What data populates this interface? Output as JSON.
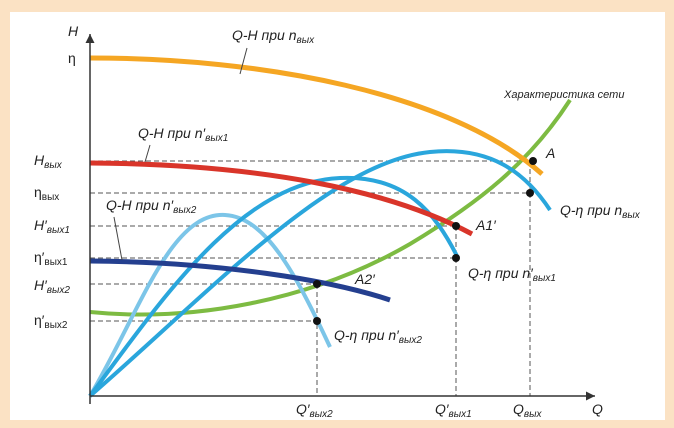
{
  "colors": {
    "background": "#fbe2c4",
    "qh_nom": "#f5a623",
    "qh_1": "#d9352a",
    "qh_2": "#243f8f",
    "eff_nom": "#2aa6dc",
    "eff_1": "#2aa6dc",
    "eff_2": "#7cc5e8",
    "network": "#7dbb42"
  },
  "axes": {
    "y": "H",
    "x": "Q"
  },
  "network_label": "Характеристика сети",
  "y_ticks": {
    "eta": "η",
    "h_vyh": {
      "main": "H",
      "sub": "вых"
    },
    "eta_vyh": {
      "main": "η",
      "sub": "вых"
    },
    "h_vyh1": {
      "main": "H′",
      "sub": "вых1"
    },
    "eta_vyh1": {
      "main": "η′",
      "sub": "вых1"
    },
    "h_vyh2": {
      "main": "H′",
      "sub": "вых2"
    },
    "eta_vyh2": {
      "main": "η′",
      "sub": "вых2"
    }
  },
  "x_ticks": {
    "q2": {
      "main": "Q′",
      "sub": "вых2"
    },
    "q1": {
      "main": "Q′",
      "sub": "вых1"
    },
    "q": {
      "main": "Q",
      "sub": "вых"
    }
  },
  "curve_labels": {
    "qh_nom": {
      "main": "Q-H при n",
      "sub": "вых"
    },
    "qh_1": {
      "main": "Q-H при n′",
      "sub": "вых1"
    },
    "qh_2": {
      "main": "Q-H при n′",
      "sub": "вых2"
    },
    "eff_nom": {
      "main": "Q-η при n",
      "sub": "вых"
    },
    "eff_1": {
      "main": "Q-η при n′",
      "sub": "вых1"
    },
    "eff_2": {
      "main": "Q-η при n′",
      "sub": "вых2"
    }
  },
  "points": {
    "a": "A",
    "a1": "A1′",
    "a2": "A2′"
  }
}
